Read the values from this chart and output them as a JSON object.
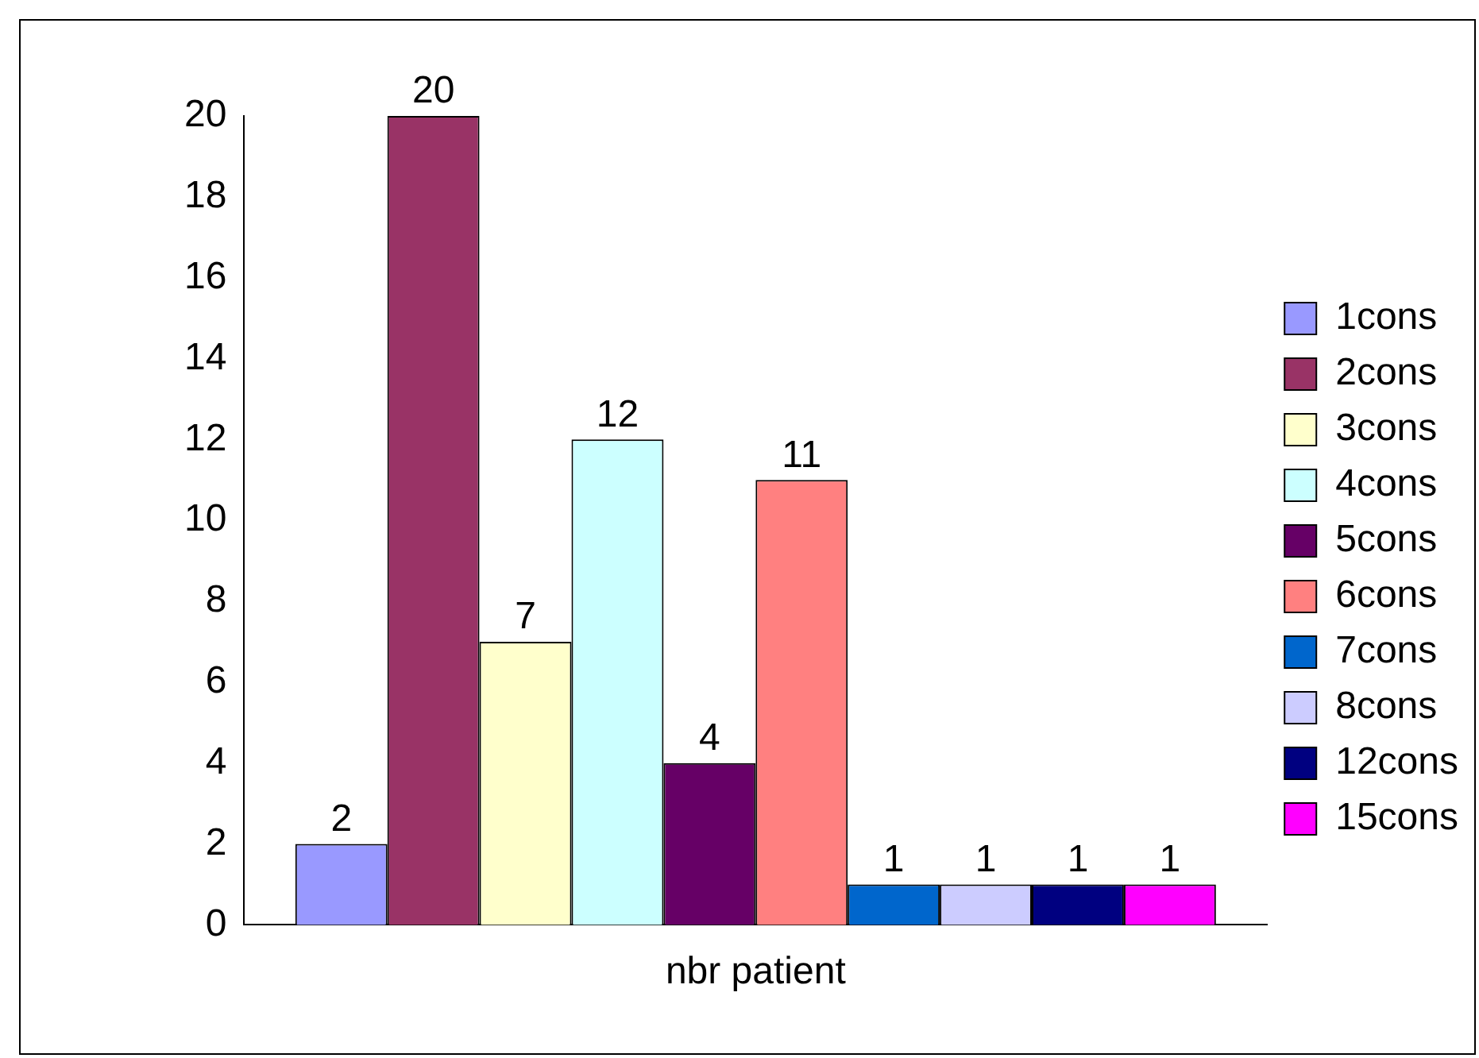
{
  "chart_data": {
    "type": "bar",
    "categories": [
      "nbr patient"
    ],
    "series": [
      {
        "name": "1cons",
        "color": "#9999ff",
        "values": [
          2
        ]
      },
      {
        "name": "2cons",
        "color": "#993366",
        "values": [
          20
        ]
      },
      {
        "name": "3cons",
        "color": "#ffffcc",
        "values": [
          7
        ]
      },
      {
        "name": "4cons",
        "color": "#ccffff",
        "values": [
          12
        ]
      },
      {
        "name": "5cons",
        "color": "#660066",
        "values": [
          4
        ]
      },
      {
        "name": "6cons",
        "color": "#ff8080",
        "values": [
          11
        ]
      },
      {
        "name": "7cons",
        "color": "#0066cc",
        "values": [
          1
        ]
      },
      {
        "name": "8cons",
        "color": "#ccccff",
        "values": [
          1
        ]
      },
      {
        "name": "12cons",
        "color": "#000080",
        "values": [
          1
        ]
      },
      {
        "name": "15cons",
        "color": "#ff00ff",
        "values": [
          1
        ]
      }
    ],
    "ylim": [
      0,
      20
    ],
    "yticks": [
      0,
      2,
      4,
      6,
      8,
      10,
      12,
      14,
      16,
      18,
      20
    ],
    "grid": false,
    "legend": "right",
    "data_labels": true
  }
}
